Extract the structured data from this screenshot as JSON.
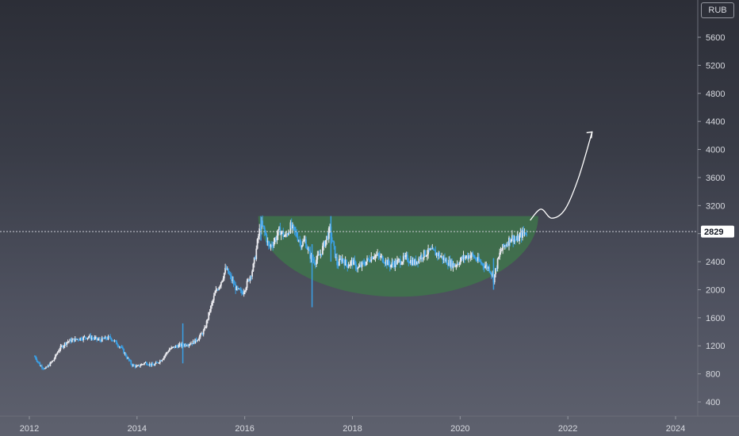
{
  "currency": "RUB",
  "colors": {
    "up": "#e9e9ee",
    "down": "#3aa0e6",
    "cup_fill": "#3e7a4a",
    "arrow": "#ffffff",
    "price_tag_bg": "#ffffff",
    "grid_line": "#c9cbd3"
  },
  "chart_data": {
    "type": "candlestick",
    "title": "",
    "xlabel": "",
    "ylabel": "",
    "currency": "RUB",
    "x_ticks": [
      "2012",
      "2014",
      "2016",
      "2018",
      "2020",
      "2022",
      "2024"
    ],
    "y_ticks": [
      400,
      800,
      1200,
      1600,
      2000,
      2400,
      2800,
      3200,
      3600,
      4000,
      4400,
      4800,
      5200,
      5600
    ],
    "ylim": [
      200,
      5850
    ],
    "xlim": [
      2011.6,
      2024.4
    ],
    "last_price": 2829,
    "price_path": [
      [
        2012.1,
        1050
      ],
      [
        2012.2,
        920
      ],
      [
        2012.3,
        870
      ],
      [
        2012.45,
        1000
      ],
      [
        2012.55,
        1150
      ],
      [
        2012.7,
        1260
      ],
      [
        2012.9,
        1300
      ],
      [
        2013.1,
        1330
      ],
      [
        2013.3,
        1280
      ],
      [
        2013.5,
        1320
      ],
      [
        2013.6,
        1250
      ],
      [
        2013.7,
        1180
      ],
      [
        2013.8,
        1050
      ],
      [
        2013.9,
        930
      ],
      [
        2014.0,
        900
      ],
      [
        2014.15,
        960
      ],
      [
        2014.3,
        920
      ],
      [
        2014.45,
        1000
      ],
      [
        2014.6,
        1150
      ],
      [
        2014.75,
        1200
      ],
      [
        2014.9,
        1220
      ],
      [
        2015.05,
        1250
      ],
      [
        2015.15,
        1320
      ],
      [
        2015.25,
        1420
      ],
      [
        2015.35,
        1700
      ],
      [
        2015.45,
        1950
      ],
      [
        2015.55,
        2100
      ],
      [
        2015.65,
        2300
      ],
      [
        2015.75,
        2150
      ],
      [
        2015.85,
        2000
      ],
      [
        2015.95,
        1950
      ],
      [
        2016.05,
        2100
      ],
      [
        2016.15,
        2300
      ],
      [
        2016.2,
        2500
      ],
      [
        2016.25,
        2750
      ],
      [
        2016.3,
        2950
      ],
      [
        2016.38,
        2800
      ],
      [
        2016.45,
        2600
      ],
      [
        2016.55,
        2700
      ],
      [
        2016.65,
        2850
      ],
      [
        2016.75,
        2750
      ],
      [
        2016.85,
        2900
      ],
      [
        2016.95,
        2800
      ],
      [
        2017.05,
        2650
      ],
      [
        2017.12,
        2700
      ],
      [
        2017.2,
        2500
      ],
      [
        2017.3,
        2400
      ],
      [
        2017.4,
        2500
      ],
      [
        2017.5,
        2700
      ],
      [
        2017.58,
        2850
      ],
      [
        2017.65,
        2600
      ],
      [
        2017.72,
        2350
      ],
      [
        2017.8,
        2450
      ],
      [
        2017.9,
        2350
      ],
      [
        2018.0,
        2400
      ],
      [
        2018.1,
        2300
      ],
      [
        2018.25,
        2400
      ],
      [
        2018.4,
        2500
      ],
      [
        2018.55,
        2450
      ],
      [
        2018.7,
        2350
      ],
      [
        2018.85,
        2400
      ],
      [
        2019.0,
        2450
      ],
      [
        2019.15,
        2380
      ],
      [
        2019.3,
        2500
      ],
      [
        2019.45,
        2550
      ],
      [
        2019.6,
        2500
      ],
      [
        2019.75,
        2400
      ],
      [
        2019.9,
        2350
      ],
      [
        2020.05,
        2450
      ],
      [
        2020.2,
        2500
      ],
      [
        2020.35,
        2400
      ],
      [
        2020.45,
        2350
      ],
      [
        2020.55,
        2300
      ],
      [
        2020.62,
        2150
      ],
      [
        2020.68,
        2350
      ],
      [
        2020.75,
        2550
      ],
      [
        2020.85,
        2650
      ],
      [
        2020.95,
        2750
      ],
      [
        2021.05,
        2700
      ],
      [
        2021.15,
        2800
      ],
      [
        2021.25,
        2829
      ]
    ],
    "extreme_wicks": [
      {
        "x": 2017.25,
        "low": 1750,
        "high": 2650
      },
      {
        "x": 2017.6,
        "low": 2400,
        "high": 3050
      },
      {
        "x": 2020.62,
        "low": 2000,
        "high": 2450
      },
      {
        "x": 2014.85,
        "low": 950,
        "high": 1520
      },
      {
        "x": 2016.3,
        "low": 2700,
        "high": 3050
      }
    ],
    "annotations": {
      "cup_pattern": {
        "x_start": 2016.25,
        "x_end": 2021.45,
        "rim": 3050,
        "bottom": 1900
      },
      "projection_arrow": [
        [
          2021.3,
          2990
        ],
        [
          2021.5,
          3150
        ],
        [
          2021.7,
          3020
        ],
        [
          2021.95,
          3150
        ],
        [
          2022.2,
          3600
        ],
        [
          2022.45,
          4250
        ]
      ]
    }
  }
}
